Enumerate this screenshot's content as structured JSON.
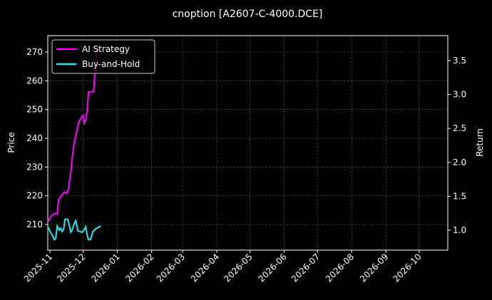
{
  "chart_data": {
    "type": "line",
    "title": "cnoption [A2607-C-4000.DCE]",
    "ylabel": "Price",
    "y2label": "Return",
    "xlim": [
      -2,
      360
    ],
    "xticks": [
      {
        "value": 0,
        "label": "2025-11"
      },
      {
        "value": 30,
        "label": "2025-12"
      },
      {
        "value": 61,
        "label": "2026-01"
      },
      {
        "value": 92,
        "label": "2026-02"
      },
      {
        "value": 120,
        "label": "2026-03"
      },
      {
        "value": 151,
        "label": "2026-04"
      },
      {
        "value": 181,
        "label": "2026-05"
      },
      {
        "value": 212,
        "label": "2026-06"
      },
      {
        "value": 242,
        "label": "2026-07"
      },
      {
        "value": 273,
        "label": "2026-08"
      },
      {
        "value": 304,
        "label": "2026-09"
      },
      {
        "value": 334,
        "label": "2026-10"
      }
    ],
    "ylim": [
      201.1,
      275.7
    ],
    "yticks": [
      210,
      220,
      230,
      240,
      250,
      260,
      270
    ],
    "y2lim": [
      0.706,
      3.868
    ],
    "y2ticks": [
      1.0,
      1.5,
      2.0,
      2.5,
      3.0,
      3.5
    ],
    "grid": true,
    "legend": "upper left",
    "series": [
      {
        "name": "AI Strategy",
        "color": "#ff00ff",
        "axis": "y2",
        "x": [
          -2,
          0,
          2,
          4.5,
          6.5,
          7.8,
          10.3,
          12.9,
          14.9,
          16.8,
          17.4,
          18.7,
          20,
          22,
          24,
          25,
          26.5,
          28,
          29.7,
          31,
          32.3,
          33.6,
          34.9,
          37.5,
          39.4,
          40.7,
          42,
          43.3
        ],
        "values": [
          1.12,
          1.18,
          1.22,
          1.25,
          1.24,
          1.45,
          1.51,
          1.56,
          1.54,
          1.61,
          1.7,
          1.83,
          2.06,
          2.3,
          2.44,
          2.52,
          2.61,
          2.65,
          2.69,
          2.58,
          2.63,
          2.76,
          3.04,
          3.04,
          3.04,
          3.34,
          3.61,
          3.71
        ]
      },
      {
        "name": "Buy-and-Hold",
        "color": "#22e5ee",
        "axis": "y2",
        "x": [
          -2,
          0,
          2,
          3.9,
          5.2,
          6.5,
          8.4,
          9.7,
          11,
          12.3,
          13.6,
          16.1,
          17.4,
          18.7,
          20,
          22,
          23.3,
          25.2,
          27.1,
          29.1,
          31,
          32.3,
          33.6,
          34.9,
          36.8,
          38.8,
          41.3,
          45.9
        ],
        "values": [
          1.05,
          0.98,
          0.93,
          0.86,
          0.88,
          1.06,
          1.0,
          1.03,
          0.98,
          1.01,
          1.16,
          1.16,
          1.08,
          0.97,
          1.0,
          1.1,
          1.14,
          0.99,
          0.98,
          0.97,
          1.01,
          1.05,
          0.93,
          0.86,
          0.86,
          0.98,
          1.02,
          1.06
        ]
      }
    ]
  }
}
